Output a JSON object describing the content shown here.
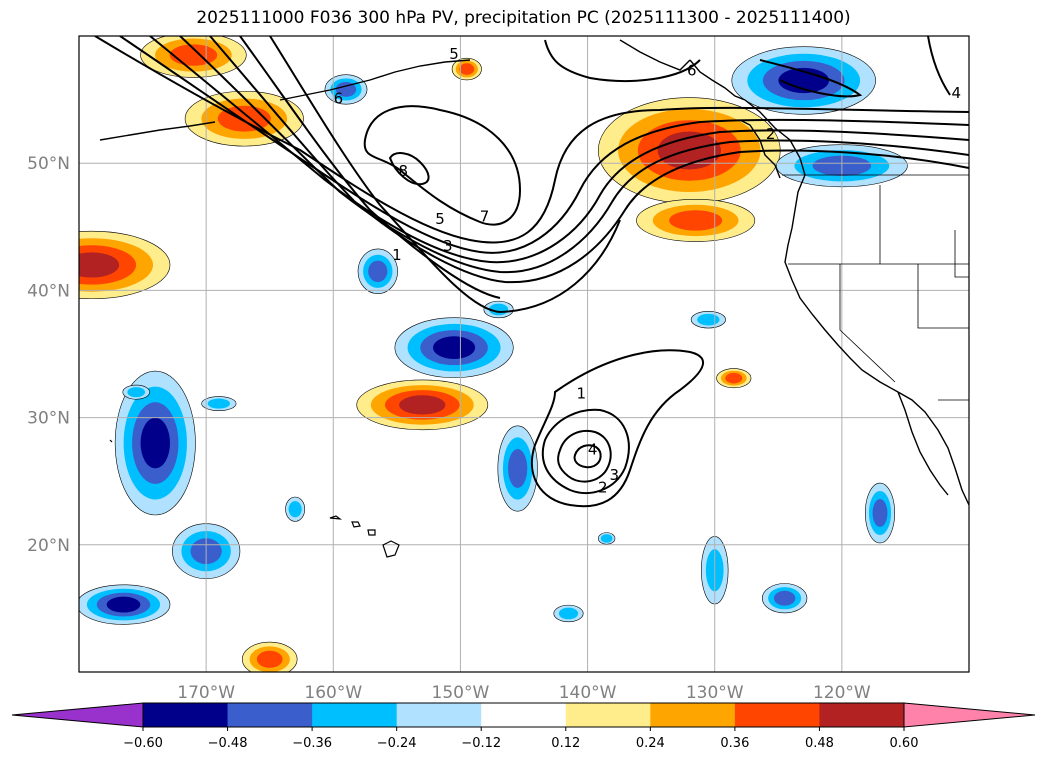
{
  "title": "2025111000 F036 300 hPa PV, precipitation PC (2025111300 - 2025111400)",
  "map": {
    "lon_range": [
      -180,
      -110
    ],
    "lat_range": [
      10,
      60
    ],
    "gridlines": true,
    "lon_ticks": [
      {
        "value": -170,
        "label": "170°W"
      },
      {
        "value": -160,
        "label": "160°W"
      },
      {
        "value": -150,
        "label": "150°W"
      },
      {
        "value": -140,
        "label": "140°W"
      },
      {
        "value": -130,
        "label": "130°W"
      },
      {
        "value": -120,
        "label": "120°W"
      }
    ],
    "lat_ticks": [
      {
        "value": 50,
        "label": "50°N"
      },
      {
        "value": 40,
        "label": "40°N"
      },
      {
        "value": 30,
        "label": "30°N"
      },
      {
        "value": 20,
        "label": "20°N"
      }
    ],
    "contour_labels": [
      {
        "text": "6",
        "lon": -159.6,
        "lat": 55.1
      },
      {
        "text": "5",
        "lon": -150.5,
        "lat": 58.6
      },
      {
        "text": "6",
        "lon": -131.8,
        "lat": 57.3
      },
      {
        "text": "8",
        "lon": -154.5,
        "lat": 49.4
      },
      {
        "text": "5",
        "lon": -151.6,
        "lat": 45.6
      },
      {
        "text": "7",
        "lon": -148.1,
        "lat": 45.8
      },
      {
        "text": "3",
        "lon": -151.0,
        "lat": 43.5
      },
      {
        "text": "1",
        "lon": -155.0,
        "lat": 42.8
      },
      {
        "text": "2",
        "lon": -125.6,
        "lat": 52.3
      },
      {
        "text": "4",
        "lon": -111.0,
        "lat": 55.5
      },
      {
        "text": "1",
        "lon": -140.5,
        "lat": 31.9
      },
      {
        "text": "4",
        "lon": -139.6,
        "lat": 27.5
      },
      {
        "text": "3",
        "lon": -137.9,
        "lat": 25.5
      },
      {
        "text": "2",
        "lon": -138.8,
        "lat": 24.5
      }
    ],
    "precip_pc_regions": [
      {
        "lon": -179.0,
        "lat": 42.0,
        "rx": 6,
        "ry": 2.5,
        "value": 0.52
      },
      {
        "lon": -153.0,
        "lat": 31.0,
        "rx": 5,
        "ry": 1.8,
        "value": 0.52
      },
      {
        "lon": -132.0,
        "lat": 51.0,
        "rx": 7,
        "ry": 4.0,
        "value": 0.5
      },
      {
        "lon": -131.5,
        "lat": 45.5,
        "rx": 4.5,
        "ry": 1.5,
        "value": 0.42
      },
      {
        "lon": -167.0,
        "lat": 53.5,
        "rx": 4.5,
        "ry": 2.0,
        "value": 0.42
      },
      {
        "lon": -171.0,
        "lat": 58.5,
        "rx": 4.0,
        "ry": 1.6,
        "value": 0.46
      },
      {
        "lon": -165.0,
        "lat": 11.0,
        "rx": 2.0,
        "ry": 1.2,
        "value": 0.4
      },
      {
        "lon": -128.5,
        "lat": 33.1,
        "rx": 1.2,
        "ry": 0.6,
        "value": 0.4
      },
      {
        "lon": -149.5,
        "lat": 57.4,
        "rx": 1.0,
        "ry": 0.7,
        "value": 0.38
      },
      {
        "lon": -174.0,
        "lat": 28.0,
        "rx": 3.0,
        "ry": 5.5,
        "value": -0.55
      },
      {
        "lon": -176.5,
        "lat": 15.3,
        "rx": 3.5,
        "ry": 1.4,
        "value": -0.5
      },
      {
        "lon": -150.5,
        "lat": 35.5,
        "rx": 4.5,
        "ry": 2.2,
        "value": -0.52
      },
      {
        "lon": -123.0,
        "lat": 56.5,
        "rx": 5.5,
        "ry": 2.5,
        "value": -0.52
      },
      {
        "lon": -120.0,
        "lat": 49.8,
        "rx": 5.0,
        "ry": 1.5,
        "value": -0.42
      },
      {
        "lon": -145.5,
        "lat": 26.0,
        "rx": 1.4,
        "ry": 3.2,
        "value": -0.42
      },
      {
        "lon": -156.5,
        "lat": 41.5,
        "rx": 1.4,
        "ry": 1.6,
        "value": -0.4
      },
      {
        "lon": -159.0,
        "lat": 55.8,
        "rx": 1.5,
        "ry": 1.0,
        "value": -0.4
      },
      {
        "lon": -117.0,
        "lat": 22.5,
        "rx": 1.0,
        "ry": 2.2,
        "value": -0.4
      },
      {
        "lon": -124.5,
        "lat": 15.8,
        "rx": 1.6,
        "ry": 1.0,
        "value": -0.4
      },
      {
        "lon": -130.0,
        "lat": 18.0,
        "rx": 0.9,
        "ry": 2.5,
        "value": -0.36
      },
      {
        "lon": -170.0,
        "lat": 19.5,
        "rx": 2.5,
        "ry": 2.0,
        "value": -0.45
      },
      {
        "lon": -147.0,
        "lat": 38.5,
        "rx": 1.0,
        "ry": 0.5,
        "value": -0.3
      },
      {
        "lon": -130.5,
        "lat": 37.7,
        "rx": 1.2,
        "ry": 0.5,
        "value": -0.3
      },
      {
        "lon": -175.5,
        "lat": 32.0,
        "rx": 0.9,
        "ry": 0.4,
        "value": -0.3
      },
      {
        "lon": -169.0,
        "lat": 31.1,
        "rx": 1.2,
        "ry": 0.4,
        "value": -0.3
      },
      {
        "lon": -141.5,
        "lat": 14.6,
        "rx": 1.0,
        "ry": 0.5,
        "value": -0.3
      },
      {
        "lon": -138.5,
        "lat": 20.5,
        "rx": 0.5,
        "ry": 0.3,
        "value": -0.3
      },
      {
        "lon": -163.0,
        "lat": 22.8,
        "rx": 0.6,
        "ry": 0.8,
        "value": -0.3
      }
    ]
  },
  "colorbar": {
    "extend": "both",
    "ticks": [
      "−0.60",
      "−0.48",
      "−0.36",
      "−0.24",
      "−0.12",
      "0.12",
      "0.24",
      "0.36",
      "0.48",
      "0.60"
    ],
    "colors": [
      "#9932cc",
      "#00008b",
      "#3a5fcd",
      "#00bfff",
      "#b0e2ff",
      "#ffffff",
      "#ffec8b",
      "#ffa500",
      "#ff4500",
      "#b22222",
      "#ff82ab"
    ]
  }
}
